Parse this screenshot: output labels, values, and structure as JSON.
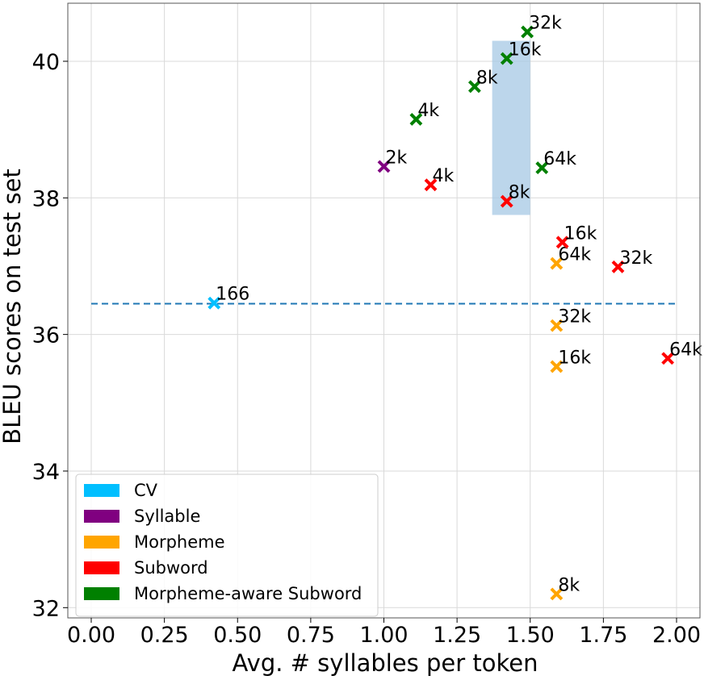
{
  "chart_data": {
    "type": "scatter",
    "title": "",
    "xlabel": "Avg. # syllables per token",
    "ylabel": "BLEU scores on test set",
    "xlim": [
      -0.08,
      2.08
    ],
    "ylim": [
      31.85,
      40.85
    ],
    "xticks": [
      0.0,
      0.25,
      0.5,
      0.75,
      1.0,
      1.25,
      1.5,
      1.75,
      2.0
    ],
    "xtick_labels": [
      "0.00",
      "0.25",
      "0.50",
      "0.75",
      "1.00",
      "1.25",
      "1.50",
      "1.75",
      "2.00"
    ],
    "yticks": [
      32,
      34,
      36,
      38,
      40
    ],
    "ytick_labels": [
      "32",
      "34",
      "36",
      "38",
      "40"
    ],
    "grid": true,
    "legend_position": "bottom-left",
    "marker": "x",
    "baseline": {
      "y": 36.45,
      "x_start": 0.0,
      "x_end": 2.0,
      "style": "dashed",
      "color": "#1f77b4"
    },
    "highlight_region": {
      "x": [
        1.37,
        1.5
      ],
      "y": [
        37.75,
        40.3
      ],
      "color": "#a6c8e4"
    },
    "series": [
      {
        "name": "CV",
        "color": "#00bfff",
        "points": [
          {
            "x": 0.42,
            "y": 36.46,
            "label": "166"
          }
        ]
      },
      {
        "name": "Syllable",
        "color": "#800080",
        "points": [
          {
            "x": 1.0,
            "y": 38.46,
            "label": "2k"
          }
        ]
      },
      {
        "name": "Morpheme",
        "color": "#ffa500",
        "points": [
          {
            "x": 1.59,
            "y": 37.04,
            "label": "64k"
          },
          {
            "x": 1.59,
            "y": 36.13,
            "label": "32k"
          },
          {
            "x": 1.59,
            "y": 35.53,
            "label": "16k"
          },
          {
            "x": 1.59,
            "y": 32.2,
            "label": "8k"
          }
        ]
      },
      {
        "name": "Subword",
        "color": "#ff0000",
        "points": [
          {
            "x": 1.16,
            "y": 38.19,
            "label": "4k"
          },
          {
            "x": 1.42,
            "y": 37.95,
            "label": "8k"
          },
          {
            "x": 1.61,
            "y": 37.35,
            "label": "16k"
          },
          {
            "x": 1.8,
            "y": 36.99,
            "label": "32k"
          },
          {
            "x": 1.97,
            "y": 35.65,
            "label": "64k"
          }
        ]
      },
      {
        "name": "Morpheme-aware Subword",
        "color": "#008000",
        "points": [
          {
            "x": 1.11,
            "y": 39.15,
            "label": "4k"
          },
          {
            "x": 1.31,
            "y": 39.63,
            "label": "8k"
          },
          {
            "x": 1.42,
            "y": 40.04,
            "label": "16k"
          },
          {
            "x": 1.49,
            "y": 40.43,
            "label": "32k"
          },
          {
            "x": 1.54,
            "y": 38.44,
            "label": "64k"
          }
        ]
      }
    ]
  }
}
